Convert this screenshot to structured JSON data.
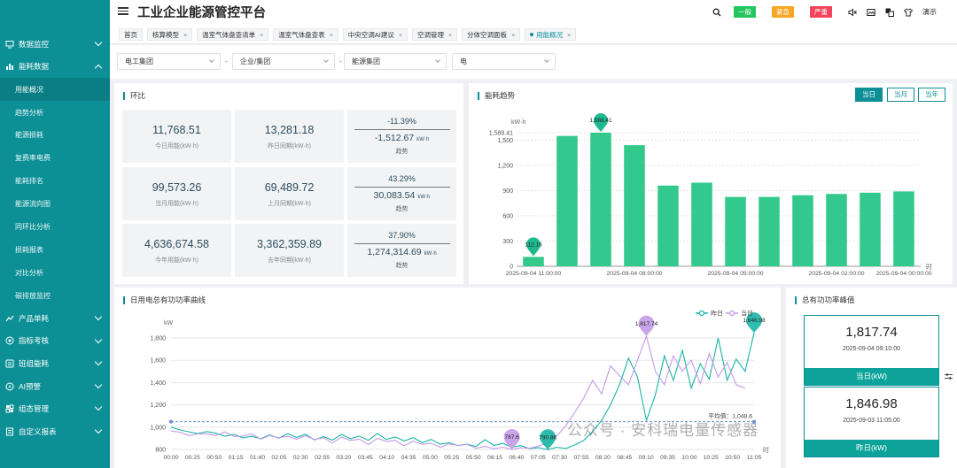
{
  "app": {
    "title": "工业企业能源管控平台"
  },
  "colors": {
    "primary": "#0d8f96",
    "bar": "#33c98c",
    "yesterday": "#18b5a6",
    "today": "#c39be8"
  },
  "sidebar": {
    "groups": [
      {
        "label": "数据监控",
        "icon": "monitor-icon",
        "expanded": false
      },
      {
        "label": "能耗数据",
        "icon": "bar-chart-icon",
        "expanded": true,
        "items": [
          "用能概况",
          "趋势分析",
          "能源损耗",
          "复费率电费",
          "能耗排名",
          "能源流向图",
          "同环比分析",
          "损耗报表",
          "对比分析",
          "碳排放监控"
        ],
        "active_item": "用能概况"
      },
      {
        "label": "产品单耗",
        "icon": "trend-icon",
        "expanded": false
      },
      {
        "label": "指标考核",
        "icon": "target-icon",
        "expanded": false
      },
      {
        "label": "班组能耗",
        "icon": "team-icon",
        "expanded": false
      },
      {
        "label": "AI预警",
        "icon": "ai-icon",
        "expanded": false
      },
      {
        "label": "组态管理",
        "icon": "grid-icon",
        "expanded": false
      },
      {
        "label": "自定义报表",
        "icon": "report-icon",
        "expanded": false
      }
    ]
  },
  "header": {
    "alerts": [
      {
        "label": "一般",
        "color": "#22c55e"
      },
      {
        "label": "紧急",
        "color": "#f5a623"
      },
      {
        "label": "严重",
        "color": "#f5455c"
      }
    ],
    "tools": [
      "search-icon",
      "mute-icon",
      "image-icon",
      "translate-icon",
      "shirt-icon"
    ],
    "demo_label": "演示"
  },
  "tabs": [
    {
      "label": "首页",
      "closable": false
    },
    {
      "label": "核算模型",
      "closable": true
    },
    {
      "label": "温室气体盘查清单",
      "closable": true
    },
    {
      "label": "温室气体盘查表",
      "closable": true
    },
    {
      "label": "中央空调AI建议",
      "closable": true
    },
    {
      "label": "空调管理",
      "closable": true
    },
    {
      "label": "分体空调面板",
      "closable": true
    },
    {
      "label": "用能概况",
      "closable": true,
      "active": true
    }
  ],
  "filters": [
    {
      "value": "电工集团"
    },
    {
      "value": "企业/集团"
    },
    {
      "value": "能源集团"
    },
    {
      "value": "电"
    }
  ],
  "huanbi": {
    "title": "环比",
    "rows": [
      {
        "current": {
          "value": "11,768.51",
          "label": "今日用能(kW·h)"
        },
        "previous": {
          "value": "13,281.18",
          "label": "昨日同期(kW·h)"
        },
        "trend": {
          "pct": "-11.39%",
          "diff": "-1,512.67",
          "unit": "kW·h",
          "label": "趋势"
        }
      },
      {
        "current": {
          "value": "99,573.26",
          "label": "当月用能(kW·h)"
        },
        "previous": {
          "value": "69,489.72",
          "label": "上月同期(kW·h)"
        },
        "trend": {
          "pct": "43.29%",
          "diff": "30,083.54",
          "unit": "kW·h",
          "label": "趋势"
        }
      },
      {
        "current": {
          "value": "4,636,674.58",
          "label": "今年用能(kW·h)"
        },
        "previous": {
          "value": "3,362,359.89",
          "label": "去年同期(kW·h)"
        },
        "trend": {
          "pct": "37.90%",
          "diff": "1,274,314.69",
          "unit": "kW·h",
          "label": "趋势"
        }
      }
    ]
  },
  "energy_trend": {
    "title": "能耗趋势",
    "range_buttons": [
      "当日",
      "当月",
      "当年"
    ],
    "active_range": "当日"
  },
  "power_curve": {
    "title": "日用电总有功功率曲线"
  },
  "peak": {
    "title": "总有功功率峰值",
    "cards": [
      {
        "value": "1,817.74",
        "time": "2025-09-04 09:10:00",
        "label": "当日(kW)"
      },
      {
        "value": "1,846.98",
        "time": "2025-09-03 11:05:00",
        "label": "昨日(kW)"
      }
    ]
  },
  "watermark": "公众号 · 安科瑞电量传感器",
  "chart_data": [
    {
      "type": "bar",
      "title": "能耗趋势",
      "ylabel": "kW·h",
      "xlabel": "时",
      "ylim": [
        0,
        1588.41
      ],
      "yticks": [
        0,
        300,
        600,
        900,
        1200,
        1500,
        1588.41
      ],
      "ytick_labels": [
        "0",
        "300",
        "600",
        "900",
        "1,200",
        "1,500",
        "1,588.41"
      ],
      "x_tick_labels": [
        "2025-09-04 11:00:00",
        "2025-09-04 08:00:00",
        "2025-09-04 05:00:00",
        "2025-09-04 02:00:00",
        "2025-09-04 00:00:00"
      ],
      "x_tick_index": [
        0,
        3,
        6,
        9,
        11
      ],
      "categories": [
        "11:00",
        "10:00",
        "09:00",
        "08:00",
        "07:00",
        "06:00",
        "05:00",
        "04:00",
        "03:00",
        "02:00",
        "01:00",
        "00:00"
      ],
      "values": [
        112.16,
        1550,
        1588.41,
        1440,
        960,
        995,
        825,
        825,
        845,
        860,
        875,
        890
      ],
      "annotations": [
        {
          "index": 0,
          "label": "112.16"
        },
        {
          "index": 2,
          "label": "1,588.41"
        }
      ]
    },
    {
      "type": "line",
      "title": "日用电总有功功率曲线",
      "ylabel": "kW",
      "xlabel": "时",
      "ylim": [
        800,
        1800
      ],
      "yticks": [
        800,
        1000,
        1200,
        1400,
        1600,
        1800
      ],
      "ytick_labels": [
        "800",
        "1,000",
        "1,200",
        "1,400",
        "1,600",
        "1,800"
      ],
      "x_tick_labels": [
        "00:00",
        "00:25",
        "00:50",
        "01:15",
        "01:40",
        "02:05",
        "02:30",
        "02:55",
        "03:20",
        "03:45",
        "04:10",
        "04:35",
        "05:00",
        "05:25",
        "05:50",
        "06:15",
        "06:40",
        "07:05",
        "07:30",
        "07:55",
        "08:20",
        "08:45",
        "09:10",
        "09:35",
        "10:00",
        "10:25",
        "10:50",
        "11:05"
      ],
      "average": {
        "value": 1048.6,
        "label": "平均值：1,048.6"
      },
      "series": [
        {
          "name": "昨日",
          "color": "#18b5a6",
          "values": [
            1000,
            975,
            958,
            942,
            960,
            945,
            918,
            935,
            904,
            918,
            896,
            930,
            900,
            942,
            908,
            936,
            885,
            915,
            883,
            935,
            896,
            920,
            882,
            944,
            890,
            912,
            876,
            906,
            860,
            890,
            848,
            860,
            834,
            848,
            826,
            888,
            836,
            855,
            820,
            834,
            807,
            816,
            798,
            820,
            808,
            840,
            880,
            960,
            1060,
            1200,
            1380,
            1620,
            1450,
            1060,
            1290,
            1640,
            1420,
            1690,
            1350,
            1570,
            1430,
            1800,
            1420,
            1610,
            1500,
            1846.98
          ]
        },
        {
          "name": "当日",
          "color": "#c39be8",
          "values": [
            965,
            955,
            925,
            940,
            940,
            925,
            958,
            916,
            920,
            940,
            892,
            925,
            904,
            918,
            892,
            922,
            890,
            905,
            858,
            910,
            880,
            893,
            843,
            900,
            872,
            880,
            832,
            875,
            845,
            856,
            820,
            850,
            835,
            845,
            810,
            827,
            806,
            820,
            800,
            815,
            810,
            830,
            860,
            920,
            1010,
            1130,
            1260,
            1420,
            1300,
            1550,
            1460,
            1380,
            1600,
            1817.74,
            1500,
            1380,
            1640,
            1500,
            1600,
            1390,
            1660,
            1450,
            1580,
            1380,
            1350
          ]
        }
      ],
      "annotations": [
        {
          "label": "1,817.74"
        },
        {
          "label": "1,846.98"
        },
        {
          "label": "787.6"
        },
        {
          "label": "790.86"
        }
      ]
    }
  ]
}
